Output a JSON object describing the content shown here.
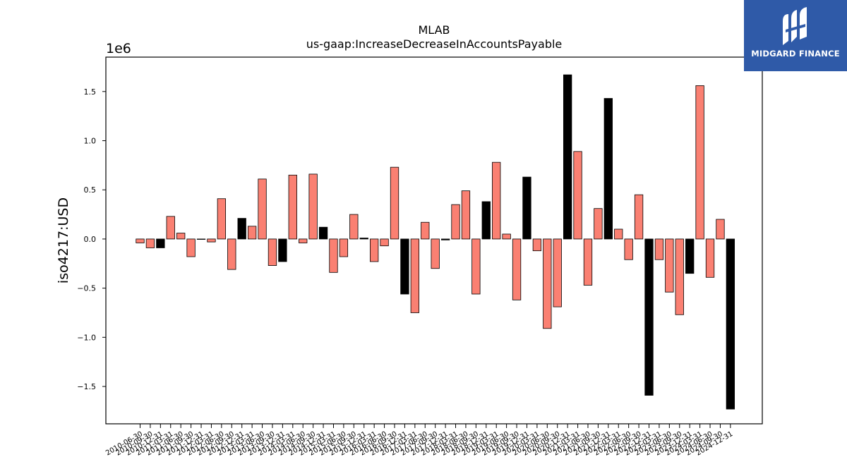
{
  "brand": {
    "name": "MIDGARD FINANCE",
    "bg_color": "#2f5aa8",
    "icon": "midgard-logo-mark"
  },
  "chart_data": {
    "type": "bar",
    "title": "MLAB",
    "subtitle": "us-gaap:IncreaseDecreaseInAccountsPayable",
    "ylabel": "iso4217:USD",
    "xlabel": "",
    "y_scale_label": "1e6",
    "ylim": [
      -1.88,
      1.85
    ],
    "yticks": [
      1.5,
      1.0,
      0.5,
      0.0,
      -0.5,
      -1.0,
      -1.5
    ],
    "ytick_labels": [
      "1.5",
      "1.0",
      "0.5",
      "0.0",
      "−0.5",
      "−1.0",
      "−1.5"
    ],
    "colors": {
      "Q": "#fa8072",
      "FY": "#000000"
    },
    "grid": false,
    "legend": "none",
    "categories": [
      "2010-06-30",
      "2010-09-30",
      "2010-12-31",
      "2011-03-31",
      "2011-06-30",
      "2011-09-30",
      "2011-12-31",
      "2012-03-31",
      "2012-06-30",
      "2012-09-30",
      "2012-12-31",
      "2013-03-31",
      "2013-06-30",
      "2013-09-30",
      "2013-12-31",
      "2014-03-31",
      "2014-06-30",
      "2014-09-30",
      "2014-12-31",
      "2015-03-31",
      "2015-06-30",
      "2015-09-30",
      "2015-12-31",
      "2016-03-31",
      "2016-06-30",
      "2016-09-30",
      "2016-12-31",
      "2017-03-31",
      "2017-06-30",
      "2017-09-30",
      "2017-12-31",
      "2018-03-31",
      "2018-06-30",
      "2018-09-30",
      "2018-12-31",
      "2019-03-31",
      "2019-06-30",
      "2019-09-30",
      "2019-12-31",
      "2020-03-31",
      "2020-06-30",
      "2020-09-30",
      "2020-12-31",
      "2021-03-31",
      "2021-06-30",
      "2021-09-30",
      "2021-12-31",
      "2022-03-31",
      "2022-06-30",
      "2022-09-30",
      "2022-12-31",
      "2023-03-31",
      "2023-06-30",
      "2023-09-30",
      "2023-12-31",
      "2024-03-31",
      "2024-06-30",
      "2024-09-30",
      "2024-12-31"
    ],
    "x_tick_labels": [
      "2010-06-30",
      "2010-09-30",
      "2010-12-31",
      "2011-03-31",
      "2011-06-30",
      "2011-09-30",
      "2011-12-31",
      "2012-03-31",
      "2012-06-30",
      "2012-09-30",
      "2012-12-31",
      "2013-03-31",
      "2013-06-30",
      "2013-09-30",
      "2013-12-31",
      "2014-03-31",
      "2014-06-30",
      "2014-09-30",
      "2014-12-31",
      "2015-03-31",
      "2015-06-30",
      "2015-09-30",
      "2015-12-31",
      "2016-03-31",
      "2016-06-30",
      "2016-09-30",
      "2016-12-31",
      "2017-03-31",
      "2017-06-30",
      "2017-09-30",
      "2017-12-31",
      "2018-03-31",
      "2018-06-30",
      "2018-09-30",
      "2018-12-31",
      "2019-03-31",
      "2019-06-30",
      "2019-09-30",
      "2019-12-31",
      "2020-03-31",
      "2020-06-30",
      "2020-09-30",
      "2020-12-31",
      "2021-03-31",
      "2021-06-30",
      "2021-09-30",
      "2021-12-31",
      "2022-03-31",
      "2022-06-30",
      "2022-09-30",
      "2022-12-31",
      "2023-03-31",
      "2023-06-30",
      "2023-09-30",
      "2023-12-31",
      "2024-03-31",
      "2024-06-30",
      "2024-09-30",
      "2024-12-31"
    ],
    "values": [
      -0.04,
      -0.09,
      -0.09,
      0.23,
      0.06,
      -0.18,
      0.0,
      -0.03,
      0.41,
      -0.31,
      0.21,
      0.13,
      0.61,
      -0.27,
      -0.23,
      0.65,
      -0.04,
      0.66,
      0.12,
      -0.34,
      -0.18,
      0.25,
      0.01,
      -0.23,
      -0.07,
      0.73,
      -0.56,
      -0.75,
      0.17,
      -0.3,
      -0.01,
      0.35,
      0.49,
      -0.56,
      0.38,
      0.78,
      0.05,
      -0.62,
      0.63,
      -0.12,
      -0.91,
      -0.69,
      1.67,
      0.89,
      -0.47,
      0.31,
      1.43,
      0.1,
      -0.21,
      0.45,
      -1.59,
      -0.21,
      -0.54,
      -0.77,
      -0.35,
      1.56,
      -0.39,
      0.2,
      -1.73
    ],
    "period": [
      "Q",
      "Q",
      "FY",
      "Q",
      "Q",
      "Q",
      "Q",
      "Q",
      "Q",
      "Q",
      "FY",
      "Q",
      "Q",
      "Q",
      "FY",
      "Q",
      "Q",
      "Q",
      "FY",
      "Q",
      "Q",
      "Q",
      "FY",
      "Q",
      "Q",
      "Q",
      "FY",
      "Q",
      "Q",
      "Q",
      "FY",
      "Q",
      "Q",
      "Q",
      "FY",
      "Q",
      "Q",
      "Q",
      "FY",
      "Q",
      "Q",
      "Q",
      "FY",
      "Q",
      "Q",
      "Q",
      "FY",
      "Q",
      "Q",
      "Q",
      "FY",
      "Q",
      "Q",
      "Q",
      "FY",
      "Q",
      "Q",
      "Q",
      "FY"
    ]
  }
}
